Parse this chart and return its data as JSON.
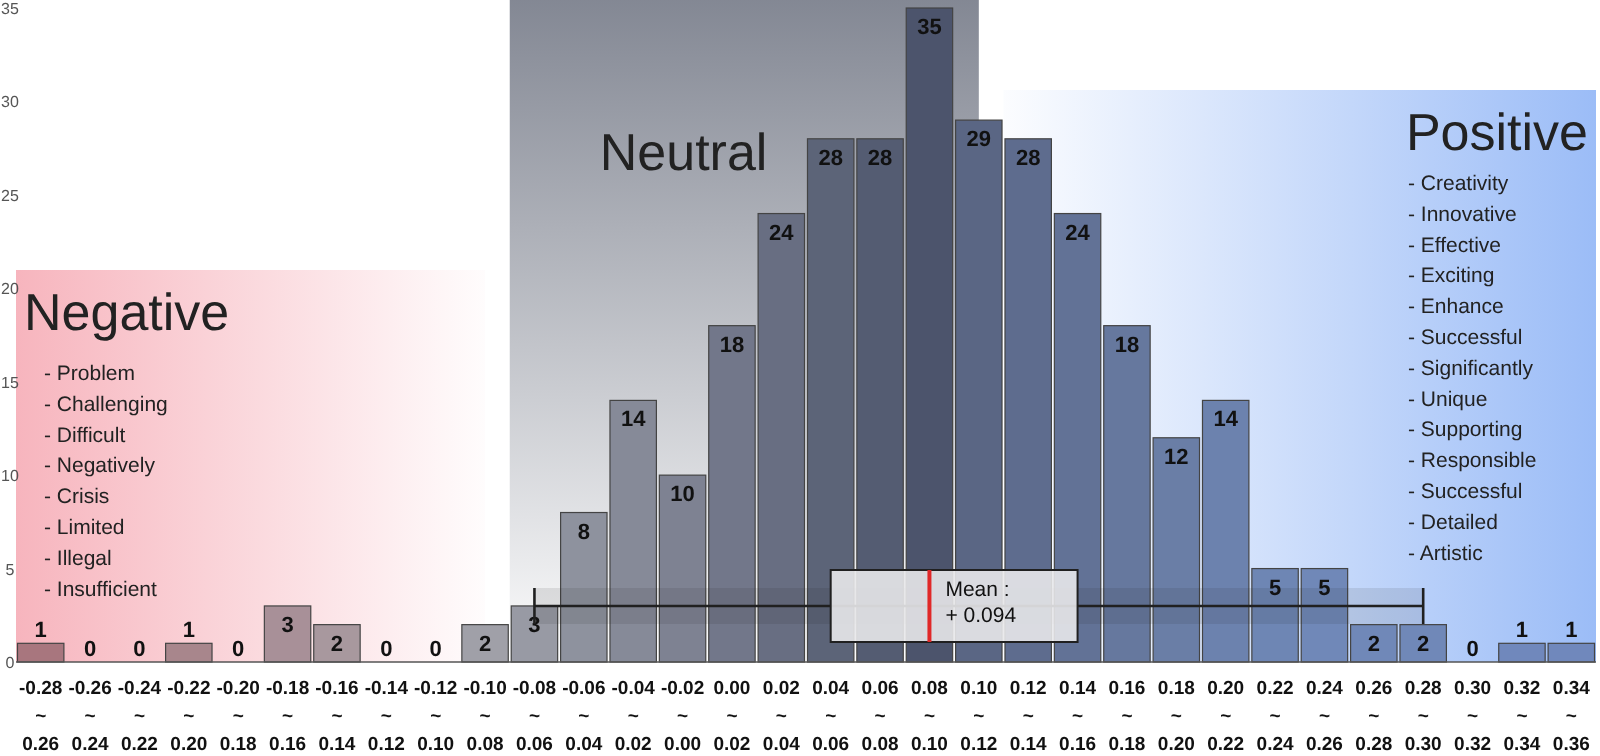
{
  "chart_data": {
    "type": "bar",
    "categories": [
      "-0.28 ~ 0.26",
      "-0.26 ~ 0.24",
      "-0.24 ~ 0.22",
      "-0.22 ~ 0.20",
      "-0.20 ~ 0.18",
      "-0.18 ~ 0.16",
      "-0.16 ~ 0.14",
      "-0.14 ~ 0.12",
      "-0.12 ~ 0.10",
      "-0.10 ~ 0.08",
      "-0.08 ~ 0.06",
      "-0.06 ~ 0.04",
      "-0.04 ~ 0.02",
      "-0.02 ~ 0.00",
      "0.00 ~ 0.02",
      "0.02 ~ 0.04",
      "0.04 ~ 0.06",
      "0.06 ~ 0.08",
      "0.08 ~ 0.10",
      "0.10 ~ 0.12",
      "0.12 ~ 0.14",
      "0.14 ~ 0.16",
      "0.16 ~ 0.18",
      "0.18 ~ 0.20",
      "0.20 ~ 0.22",
      "0.22 ~ 0.24",
      "0.24 ~ 0.26",
      "0.26 ~ 0.28",
      "0.28 ~ 0.30",
      "0.30 ~ 0.32",
      "0.32 ~ 0.34",
      "0.34 ~ 0.36"
    ],
    "values": [
      1,
      0,
      0,
      1,
      0,
      3,
      2,
      0,
      0,
      2,
      3,
      8,
      14,
      10,
      18,
      24,
      28,
      28,
      35,
      29,
      28,
      24,
      18,
      12,
      14,
      5,
      5,
      2,
      2,
      0,
      1,
      1
    ],
    "colors": [
      "#a8767e",
      "#a8868c",
      "#a8868c",
      "#a8868c",
      "#a8868c",
      "#a89098",
      "#a8989e",
      "#a0a0a8",
      "#a0a0a8",
      "#a0a0a8",
      "#989aa4",
      "#8e929e",
      "#868a98",
      "#7e8292",
      "#72778a",
      "#686e82",
      "#5c6478",
      "#545c72",
      "#4c546c",
      "#5a6684",
      "#5e6c8e",
      "#627296",
      "#66789e",
      "#6a7ea6",
      "#6c82ae",
      "#6e86b4",
      "#7088b8",
      "#7088b8",
      "#7088b8",
      "#7088b8",
      "#7088bc",
      "#7088bc"
    ],
    "data_labels": true,
    "ylim": [
      0,
      35
    ],
    "yticks": [
      0,
      5,
      10,
      15,
      20,
      25,
      30,
      35
    ],
    "bands": [
      {
        "axis": "x",
        "from": "-0.28 ~ 0.26",
        "to": "-0.10 ~ 0.08",
        "label": "Negative",
        "color": "#f07888"
      },
      {
        "axis": "x",
        "from": "-0.10 ~ 0.08",
        "to": "0.10 ~ 0.12",
        "label": "Neutral",
        "color": "#5a6070"
      },
      {
        "axis": "x",
        "from": "0.10 ~ 0.12",
        "to": "0.34 ~ 0.36",
        "label": "Positive",
        "color": "#4a86f0"
      },
      {
        "axis": "x",
        "from": "-0.08 ~ 0.06",
        "to": "0.28 ~ 0.30",
        "color": "#202020"
      },
      {
        "axis": "x",
        "from": "0.04 ~ 0.06",
        "to": "0.14 ~ 0.16",
        "color": "#e8e8ea"
      }
    ],
    "ref_lines": [
      {
        "axis": "x",
        "value": "0.08 ~ 0.10",
        "label": "Mean : + 0.094",
        "color": "#e02828"
      }
    ],
    "annotations": [
      "- Problem\n- Challenging\n- Difficult\n- Negatively\n- Crisis\n- Limited\n- Illegal\n- Insufficient",
      "- Creativity\n- Innovative\n- Effective\n- Exciting\n- Enhance\n- Successful\n- Significantly\n- Unique\n- Supporting\n- Responsible\n- Successful\n- Detailed\n- Artistic"
    ]
  }
}
